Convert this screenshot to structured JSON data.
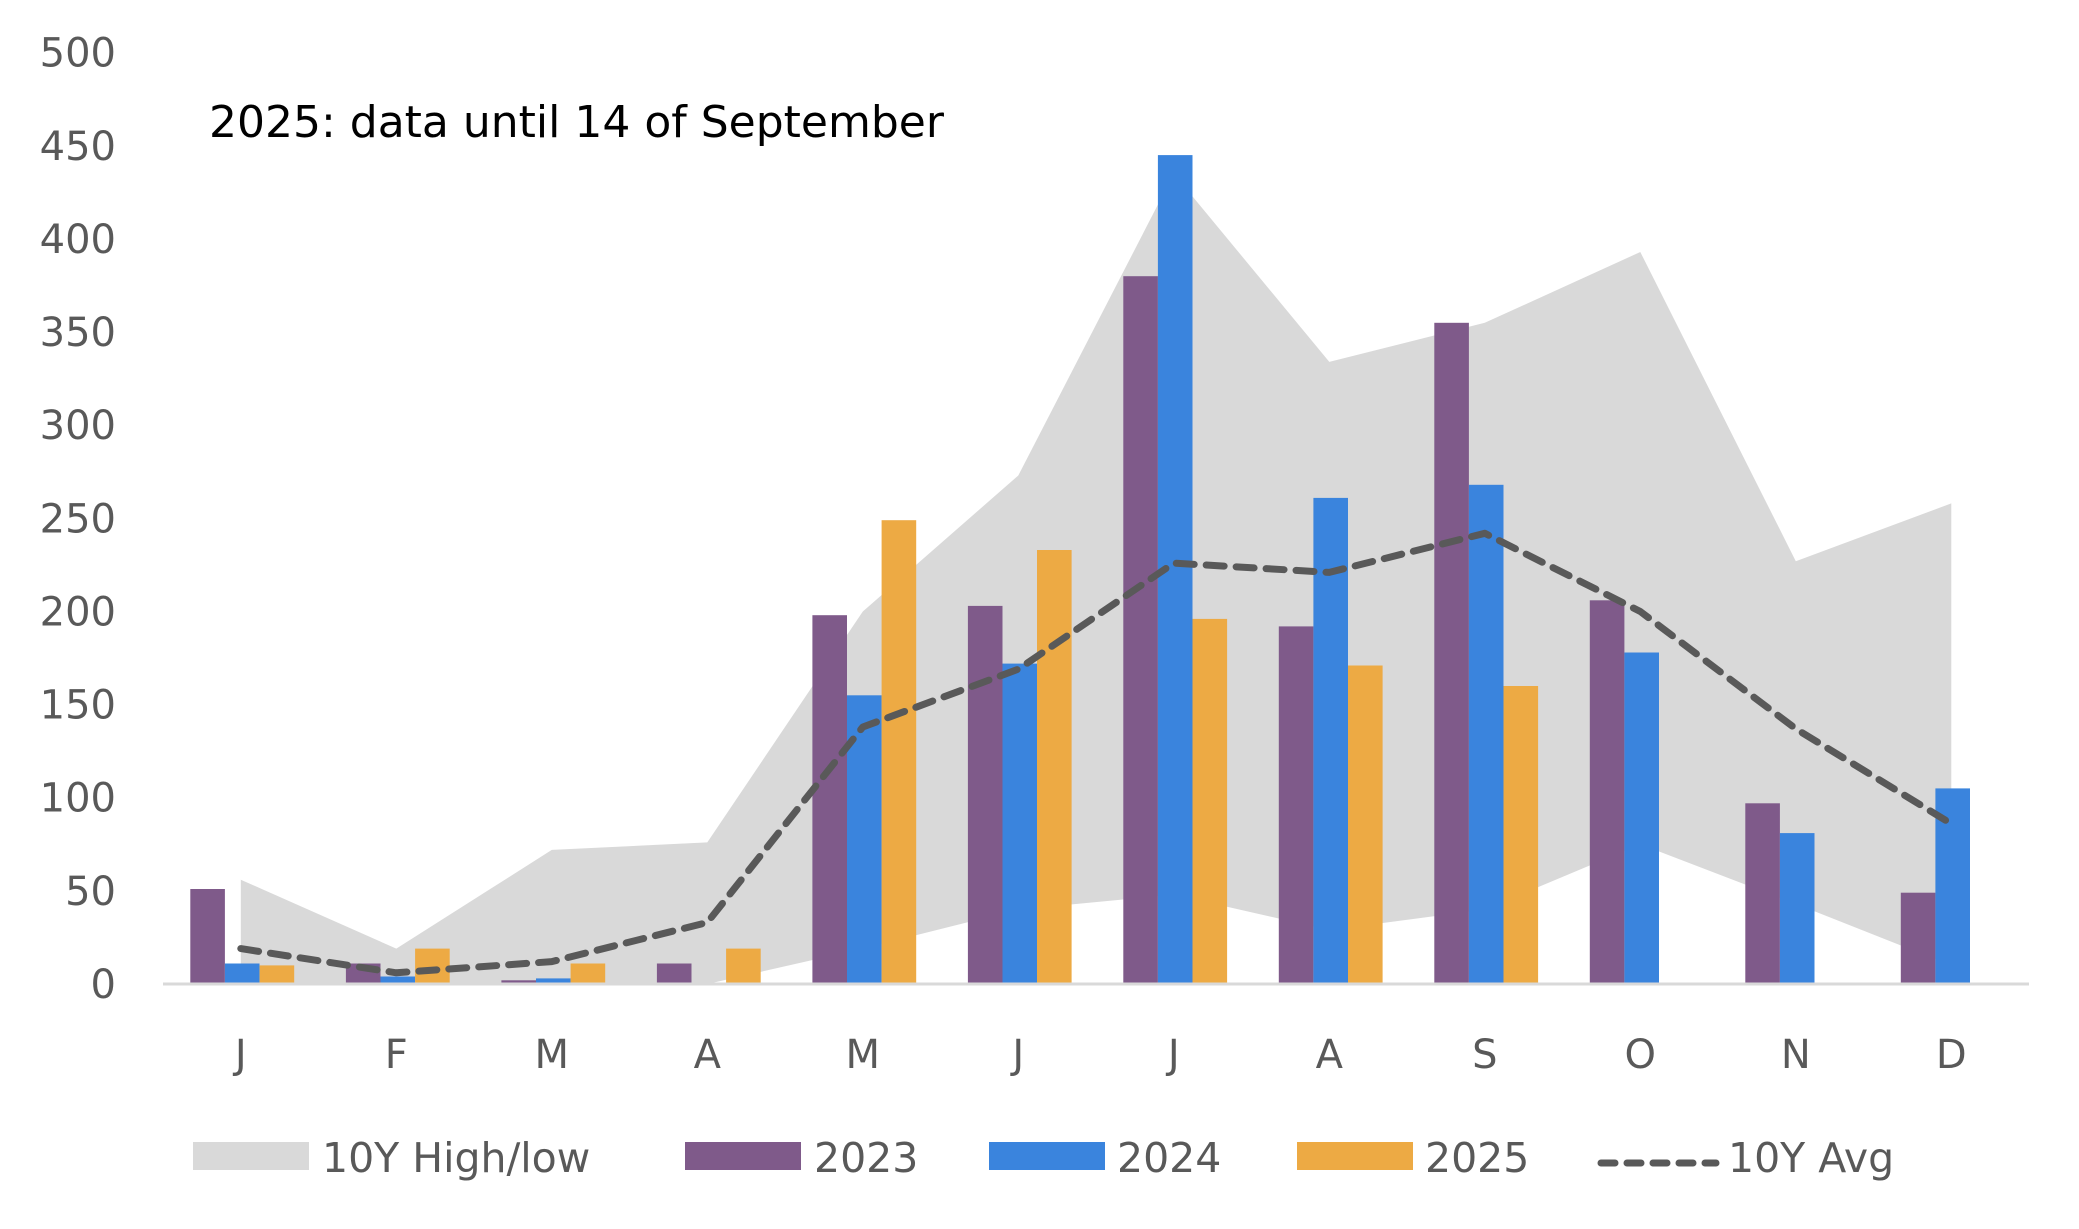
{
  "chart_data": {
    "type": "bar",
    "title": "2025: data until 14 of September",
    "xlabel": "",
    "ylabel": "",
    "ylim": [
      0,
      500
    ],
    "yticks": [
      0,
      50,
      100,
      150,
      200,
      250,
      300,
      350,
      400,
      450,
      500
    ],
    "grid": false,
    "legend_position": "bottom",
    "categories": [
      "J",
      "F",
      "M",
      "A",
      "M",
      "J",
      "J",
      "A",
      "S",
      "O",
      "N",
      "D"
    ],
    "band": {
      "name": "10Y High/low",
      "color": "#d9d9d9",
      "high": [
        56,
        19,
        72,
        76,
        200,
        273,
        435,
        334,
        355,
        393,
        227,
        258
      ],
      "low": [
        0,
        0,
        0,
        0,
        19,
        40,
        48,
        29,
        40,
        75,
        43,
        10
      ]
    },
    "series": [
      {
        "name": "2023",
        "type": "bar",
        "color": "#7f5a8a",
        "values": [
          51,
          11,
          2,
          11,
          198,
          203,
          380,
          192,
          355,
          206,
          97,
          49
        ]
      },
      {
        "name": "2024",
        "type": "bar",
        "color": "#3a84dd",
        "values": [
          11,
          4,
          3,
          0,
          155,
          172,
          445,
          261,
          268,
          178,
          81,
          105
        ]
      },
      {
        "name": "2025",
        "type": "bar",
        "color": "#edaa44",
        "values": [
          10,
          19,
          11,
          19,
          249,
          233,
          196,
          171,
          160,
          null,
          null,
          null
        ]
      },
      {
        "name": "10Y Avg",
        "type": "line",
        "style": "dashed",
        "color": "#595959",
        "values": [
          19,
          6,
          12,
          33,
          138,
          169,
          226,
          221,
          242,
          200,
          137,
          86
        ]
      }
    ],
    "legend": [
      {
        "label": "10Y High/low",
        "kind": "area",
        "color": "#d9d9d9"
      },
      {
        "label": "2023",
        "kind": "bar",
        "color": "#7f5a8a"
      },
      {
        "label": "2024",
        "kind": "bar",
        "color": "#3a84dd"
      },
      {
        "label": "2025",
        "kind": "bar",
        "color": "#edaa44"
      },
      {
        "label": "10Y Avg",
        "kind": "dashed-line",
        "color": "#595959"
      }
    ]
  },
  "colors": {
    "axis_line": "#d9d9d9",
    "tick_text": "#595959",
    "title_text": "#000000"
  }
}
